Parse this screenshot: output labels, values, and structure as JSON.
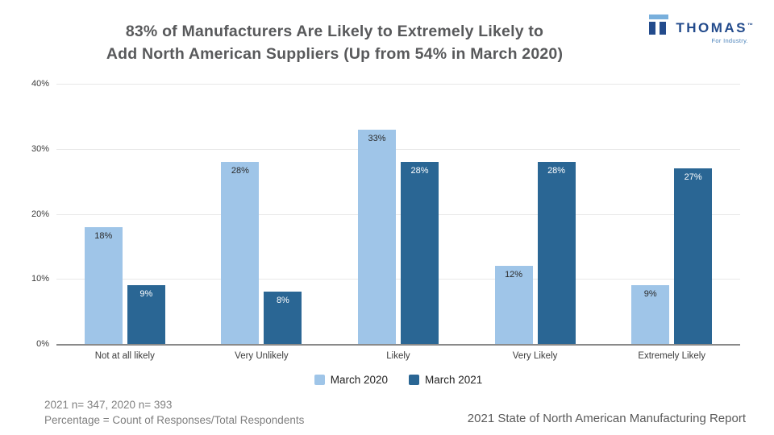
{
  "title": {
    "line1": "83% of Manufacturers Are Likely to Extremely Likely to",
    "line2": "Add North American Suppliers (Up from 54% in March 2020)"
  },
  "logo": {
    "brand": "THOMAS",
    "trademark": "™",
    "tagline": "For Industry."
  },
  "chart_data": {
    "type": "bar",
    "title": "",
    "xlabel": "",
    "ylabel": "",
    "categories": [
      "Not at all likely",
      "Very Unlikely",
      "Likely",
      "Very Likely",
      "Extremely Likely"
    ],
    "series": [
      {
        "name": "March 2020",
        "color": "#9fc5e8",
        "label_color": "#2b2b2b",
        "values": [
          18,
          28,
          33,
          12,
          9
        ]
      },
      {
        "name": "March 2021",
        "color": "#2a6694",
        "label_color": "#ffffff",
        "values": [
          9,
          8,
          28,
          28,
          27
        ]
      }
    ],
    "ylim": [
      0,
      40
    ],
    "yticks": [
      0,
      10,
      20,
      30,
      40
    ],
    "ytick_suffix": "%",
    "value_suffix": "%",
    "grid": true,
    "legend_position": "bottom"
  },
  "footer": {
    "note_line1": "2021 n= 347, 2020 n= 393",
    "note_line2": "Percentage = Count of Responses/Total Respondents",
    "source": "2021 State of North American Manufacturing Report"
  },
  "colors": {
    "series_2020": "#9fc5e8",
    "series_2021": "#2a6694",
    "gridline": "#e8e8e8",
    "baseline": "#8a8a8a",
    "title_text": "#58595b",
    "logo_navy": "#234b8c",
    "logo_light_blue": "#78afdc"
  }
}
